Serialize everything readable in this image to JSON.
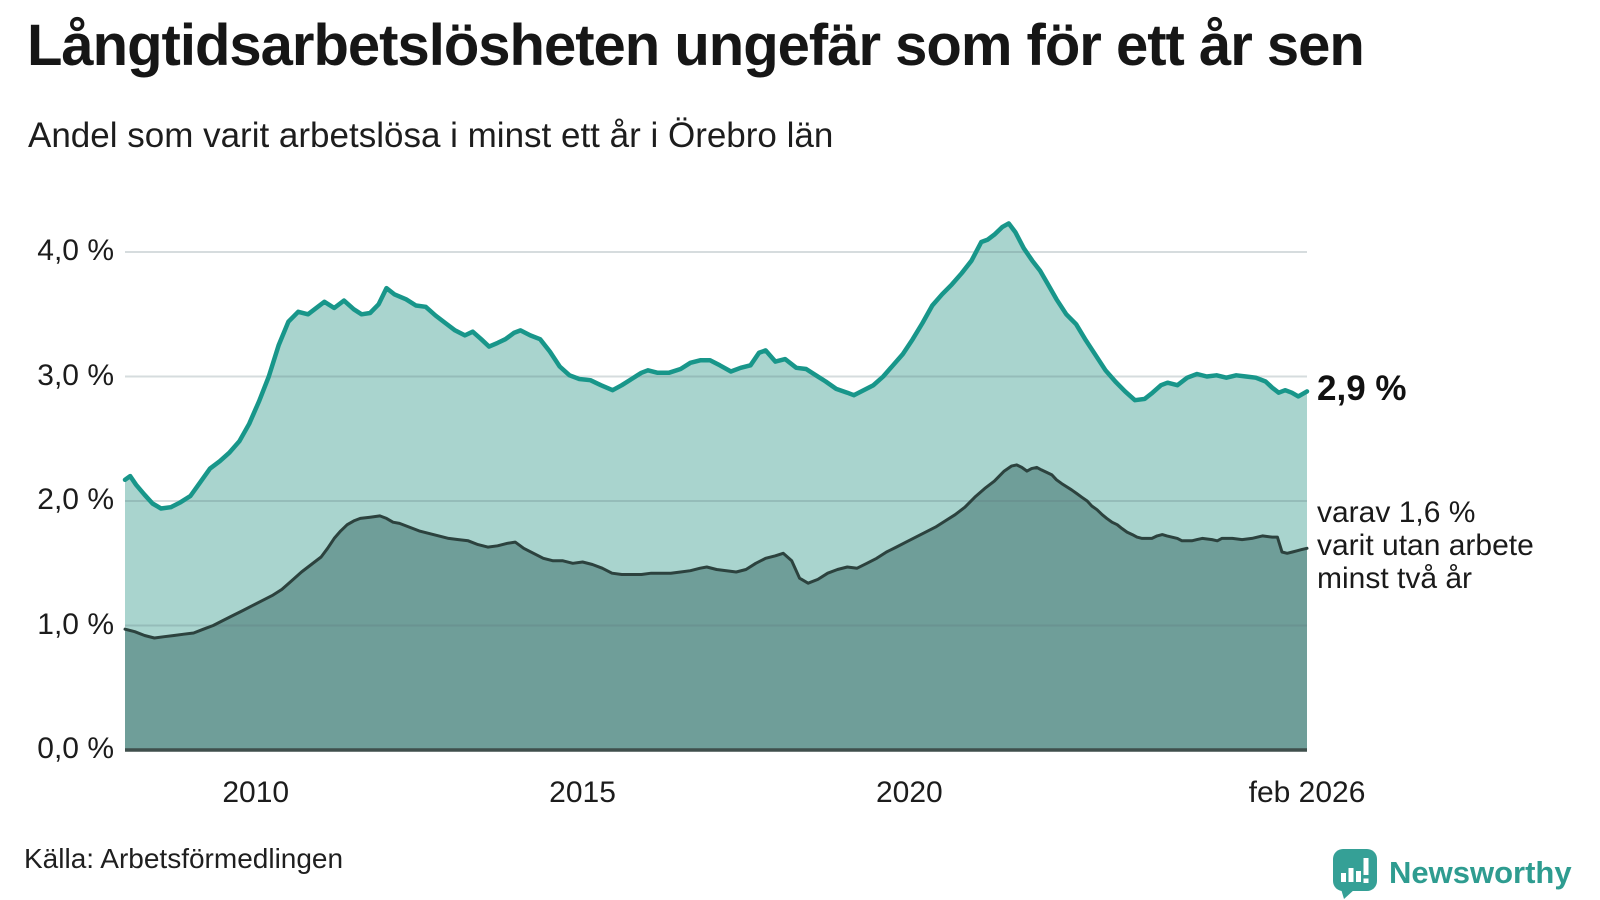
{
  "header": {
    "title": "Långtidsarbetslösheten ungefär som för ett år sen",
    "subtitle": "Andel som varit arbetslösa i minst ett år i Örebro län"
  },
  "footer": {
    "source": "Källa: Arbetsförmedlingen",
    "brand": "Newsworthy"
  },
  "colors": {
    "accent_teal": "#18968a",
    "light_fill": "#a9d4ce",
    "dark_fill": "#6f9e99",
    "dark_line": "#2c423e",
    "axis_line": "#3f4f4c",
    "gridline": "rgba(92,114,124,0.25)",
    "brand_teal": "#2e9c90"
  },
  "chart_data": {
    "type": "area",
    "title": "Långtidsarbetslösheten ungefär som för ett år sen",
    "subtitle": "Andel som varit arbetslösa i minst ett år i Örebro län",
    "grid": true,
    "legend_position": "right-annotations",
    "x_range": [
      2008.0,
      2026.083
    ],
    "y_range": [
      0,
      4.0
    ],
    "y_ticks": [
      {
        "value": 4.0,
        "label": "4,0 %"
      },
      {
        "value": 3.0,
        "label": "3,0 %"
      },
      {
        "value": 2.0,
        "label": "2,0 %"
      },
      {
        "value": 1.0,
        "label": "1,0 %"
      },
      {
        "value": 0.0,
        "label": "0,0 %"
      }
    ],
    "x_ticks": [
      {
        "value": 2010,
        "label": "2010"
      },
      {
        "value": 2015,
        "label": "2015"
      },
      {
        "value": 2020,
        "label": "2020"
      },
      {
        "value": 2026.083,
        "label": "feb 2026"
      }
    ],
    "annotations": {
      "latest_total": "2,9 %",
      "secondary_lines": [
        "varav 1,6 %",
        "varit utan arbete",
        "minst två år"
      ]
    },
    "series": [
      {
        "name": "Andel arbetslösa minst ett år",
        "color": "#18968a",
        "fill": "#a9d4ce",
        "end_label": "2,9 %",
        "points": [
          [
            2008.0,
            2.17
          ],
          [
            2008.08,
            2.2
          ],
          [
            2008.17,
            2.13
          ],
          [
            2008.3,
            2.05
          ],
          [
            2008.42,
            1.98
          ],
          [
            2008.55,
            1.94
          ],
          [
            2008.7,
            1.95
          ],
          [
            2008.85,
            1.99
          ],
          [
            2009.0,
            2.04
          ],
          [
            2009.15,
            2.15
          ],
          [
            2009.3,
            2.26
          ],
          [
            2009.45,
            2.32
          ],
          [
            2009.6,
            2.39
          ],
          [
            2009.75,
            2.48
          ],
          [
            2009.9,
            2.62
          ],
          [
            2010.05,
            2.8
          ],
          [
            2010.2,
            3.0
          ],
          [
            2010.35,
            3.25
          ],
          [
            2010.5,
            3.44
          ],
          [
            2010.65,
            3.52
          ],
          [
            2010.8,
            3.5
          ],
          [
            2010.95,
            3.56
          ],
          [
            2011.05,
            3.6
          ],
          [
            2011.2,
            3.55
          ],
          [
            2011.35,
            3.61
          ],
          [
            2011.5,
            3.54
          ],
          [
            2011.62,
            3.5
          ],
          [
            2011.75,
            3.51
          ],
          [
            2011.88,
            3.58
          ],
          [
            2012.0,
            3.71
          ],
          [
            2012.12,
            3.66
          ],
          [
            2012.3,
            3.62
          ],
          [
            2012.45,
            3.57
          ],
          [
            2012.6,
            3.56
          ],
          [
            2012.75,
            3.49
          ],
          [
            2012.9,
            3.43
          ],
          [
            2013.05,
            3.37
          ],
          [
            2013.2,
            3.33
          ],
          [
            2013.32,
            3.36
          ],
          [
            2013.45,
            3.3
          ],
          [
            2013.57,
            3.24
          ],
          [
            2013.7,
            3.27
          ],
          [
            2013.82,
            3.3
          ],
          [
            2013.95,
            3.35
          ],
          [
            2014.05,
            3.37
          ],
          [
            2014.2,
            3.33
          ],
          [
            2014.35,
            3.3
          ],
          [
            2014.5,
            3.2
          ],
          [
            2014.65,
            3.08
          ],
          [
            2014.8,
            3.01
          ],
          [
            2014.95,
            2.98
          ],
          [
            2015.12,
            2.97
          ],
          [
            2015.28,
            2.93
          ],
          [
            2015.46,
            2.89
          ],
          [
            2015.6,
            2.93
          ],
          [
            2015.75,
            2.98
          ],
          [
            2015.9,
            3.03
          ],
          [
            2016.0,
            3.05
          ],
          [
            2016.15,
            3.03
          ],
          [
            2016.32,
            3.03
          ],
          [
            2016.5,
            3.06
          ],
          [
            2016.65,
            3.11
          ],
          [
            2016.8,
            3.13
          ],
          [
            2016.95,
            3.13
          ],
          [
            2017.1,
            3.09
          ],
          [
            2017.27,
            3.04
          ],
          [
            2017.42,
            3.07
          ],
          [
            2017.57,
            3.09
          ],
          [
            2017.7,
            3.19
          ],
          [
            2017.8,
            3.21
          ],
          [
            2017.95,
            3.12
          ],
          [
            2018.1,
            3.14
          ],
          [
            2018.27,
            3.07
          ],
          [
            2018.42,
            3.06
          ],
          [
            2018.57,
            3.01
          ],
          [
            2018.72,
            2.96
          ],
          [
            2018.88,
            2.9
          ],
          [
            2019.05,
            2.87
          ],
          [
            2019.15,
            2.85
          ],
          [
            2019.3,
            2.89
          ],
          [
            2019.45,
            2.93
          ],
          [
            2019.6,
            3.0
          ],
          [
            2019.75,
            3.09
          ],
          [
            2019.9,
            3.18
          ],
          [
            2020.05,
            3.3
          ],
          [
            2020.2,
            3.43
          ],
          [
            2020.35,
            3.57
          ],
          [
            2020.5,
            3.66
          ],
          [
            2020.65,
            3.74
          ],
          [
            2020.8,
            3.83
          ],
          [
            2020.95,
            3.93
          ],
          [
            2021.1,
            4.08
          ],
          [
            2021.2,
            4.1
          ],
          [
            2021.3,
            4.14
          ],
          [
            2021.42,
            4.2
          ],
          [
            2021.52,
            4.23
          ],
          [
            2021.62,
            4.16
          ],
          [
            2021.75,
            4.03
          ],
          [
            2021.88,
            3.93
          ],
          [
            2022.0,
            3.85
          ],
          [
            2022.12,
            3.74
          ],
          [
            2022.25,
            3.62
          ],
          [
            2022.4,
            3.5
          ],
          [
            2022.55,
            3.42
          ],
          [
            2022.7,
            3.29
          ],
          [
            2022.85,
            3.17
          ],
          [
            2023.0,
            3.05
          ],
          [
            2023.15,
            2.96
          ],
          [
            2023.3,
            2.88
          ],
          [
            2023.45,
            2.81
          ],
          [
            2023.6,
            2.82
          ],
          [
            2023.72,
            2.87
          ],
          [
            2023.85,
            2.93
          ],
          [
            2023.95,
            2.95
          ],
          [
            2024.1,
            2.93
          ],
          [
            2024.25,
            2.99
          ],
          [
            2024.4,
            3.02
          ],
          [
            2024.55,
            3.0
          ],
          [
            2024.7,
            3.01
          ],
          [
            2024.85,
            2.99
          ],
          [
            2025.0,
            3.01
          ],
          [
            2025.15,
            3.0
          ],
          [
            2025.3,
            2.99
          ],
          [
            2025.45,
            2.96
          ],
          [
            2025.55,
            2.91
          ],
          [
            2025.65,
            2.87
          ],
          [
            2025.75,
            2.89
          ],
          [
            2025.85,
            2.87
          ],
          [
            2025.95,
            2.84
          ],
          [
            2026.083,
            2.88
          ]
        ]
      },
      {
        "name": "varav utan arbete minst två år",
        "color": "#2c423e",
        "fill": "#6f9e99",
        "end_label": "1,6 %",
        "points": [
          [
            2008.0,
            0.97
          ],
          [
            2008.15,
            0.95
          ],
          [
            2008.3,
            0.92
          ],
          [
            2008.45,
            0.9
          ],
          [
            2008.6,
            0.91
          ],
          [
            2008.75,
            0.92
          ],
          [
            2008.9,
            0.93
          ],
          [
            2009.05,
            0.94
          ],
          [
            2009.2,
            0.97
          ],
          [
            2009.35,
            1.0
          ],
          [
            2009.5,
            1.04
          ],
          [
            2009.65,
            1.08
          ],
          [
            2009.8,
            1.12
          ],
          [
            2009.95,
            1.16
          ],
          [
            2010.1,
            1.2
          ],
          [
            2010.25,
            1.24
          ],
          [
            2010.4,
            1.29
          ],
          [
            2010.55,
            1.36
          ],
          [
            2010.7,
            1.43
          ],
          [
            2010.85,
            1.49
          ],
          [
            2011.0,
            1.55
          ],
          [
            2011.1,
            1.62
          ],
          [
            2011.2,
            1.7
          ],
          [
            2011.3,
            1.76
          ],
          [
            2011.4,
            1.81
          ],
          [
            2011.5,
            1.84
          ],
          [
            2011.6,
            1.86
          ],
          [
            2011.75,
            1.87
          ],
          [
            2011.9,
            1.88
          ],
          [
            2012.0,
            1.86
          ],
          [
            2012.1,
            1.83
          ],
          [
            2012.2,
            1.82
          ],
          [
            2012.35,
            1.79
          ],
          [
            2012.5,
            1.76
          ],
          [
            2012.65,
            1.74
          ],
          [
            2012.8,
            1.72
          ],
          [
            2012.95,
            1.7
          ],
          [
            2013.1,
            1.69
          ],
          [
            2013.25,
            1.68
          ],
          [
            2013.4,
            1.65
          ],
          [
            2013.55,
            1.63
          ],
          [
            2013.7,
            1.64
          ],
          [
            2013.85,
            1.66
          ],
          [
            2013.97,
            1.67
          ],
          [
            2014.1,
            1.62
          ],
          [
            2014.25,
            1.58
          ],
          [
            2014.4,
            1.54
          ],
          [
            2014.55,
            1.52
          ],
          [
            2014.7,
            1.52
          ],
          [
            2014.85,
            1.5
          ],
          [
            2015.0,
            1.51
          ],
          [
            2015.15,
            1.49
          ],
          [
            2015.3,
            1.46
          ],
          [
            2015.45,
            1.42
          ],
          [
            2015.6,
            1.41
          ],
          [
            2015.75,
            1.41
          ],
          [
            2015.9,
            1.41
          ],
          [
            2016.05,
            1.42
          ],
          [
            2016.2,
            1.42
          ],
          [
            2016.35,
            1.42
          ],
          [
            2016.5,
            1.43
          ],
          [
            2016.65,
            1.44
          ],
          [
            2016.8,
            1.46
          ],
          [
            2016.9,
            1.47
          ],
          [
            2017.05,
            1.45
          ],
          [
            2017.2,
            1.44
          ],
          [
            2017.35,
            1.43
          ],
          [
            2017.5,
            1.45
          ],
          [
            2017.65,
            1.5
          ],
          [
            2017.8,
            1.54
          ],
          [
            2017.95,
            1.56
          ],
          [
            2018.07,
            1.58
          ],
          [
            2018.2,
            1.52
          ],
          [
            2018.32,
            1.38
          ],
          [
            2018.45,
            1.34
          ],
          [
            2018.6,
            1.37
          ],
          [
            2018.75,
            1.42
          ],
          [
            2018.9,
            1.45
          ],
          [
            2019.05,
            1.47
          ],
          [
            2019.2,
            1.46
          ],
          [
            2019.35,
            1.5
          ],
          [
            2019.5,
            1.54
          ],
          [
            2019.65,
            1.59
          ],
          [
            2019.8,
            1.63
          ],
          [
            2019.95,
            1.67
          ],
          [
            2020.1,
            1.71
          ],
          [
            2020.25,
            1.75
          ],
          [
            2020.4,
            1.79
          ],
          [
            2020.55,
            1.84
          ],
          [
            2020.7,
            1.89
          ],
          [
            2020.85,
            1.95
          ],
          [
            2021.0,
            2.03
          ],
          [
            2021.15,
            2.1
          ],
          [
            2021.3,
            2.16
          ],
          [
            2021.45,
            2.24
          ],
          [
            2021.56,
            2.28
          ],
          [
            2021.64,
            2.29
          ],
          [
            2021.72,
            2.27
          ],
          [
            2021.8,
            2.24
          ],
          [
            2021.87,
            2.26
          ],
          [
            2021.95,
            2.27
          ],
          [
            2022.02,
            2.25
          ],
          [
            2022.1,
            2.23
          ],
          [
            2022.18,
            2.21
          ],
          [
            2022.25,
            2.17
          ],
          [
            2022.33,
            2.14
          ],
          [
            2022.48,
            2.09
          ],
          [
            2022.56,
            2.06
          ],
          [
            2022.64,
            2.03
          ],
          [
            2022.72,
            2.0
          ],
          [
            2022.79,
            1.96
          ],
          [
            2022.87,
            1.93
          ],
          [
            2022.95,
            1.89
          ],
          [
            2023.02,
            1.86
          ],
          [
            2023.1,
            1.83
          ],
          [
            2023.18,
            1.81
          ],
          [
            2023.25,
            1.78
          ],
          [
            2023.33,
            1.75
          ],
          [
            2023.41,
            1.73
          ],
          [
            2023.48,
            1.71
          ],
          [
            2023.56,
            1.7
          ],
          [
            2023.71,
            1.7
          ],
          [
            2023.79,
            1.72
          ],
          [
            2023.87,
            1.73
          ],
          [
            2023.94,
            1.72
          ],
          [
            2024.1,
            1.7
          ],
          [
            2024.17,
            1.68
          ],
          [
            2024.32,
            1.68
          ],
          [
            2024.4,
            1.69
          ],
          [
            2024.48,
            1.7
          ],
          [
            2024.63,
            1.69
          ],
          [
            2024.71,
            1.68
          ],
          [
            2024.78,
            1.7
          ],
          [
            2024.94,
            1.7
          ],
          [
            2025.09,
            1.69
          ],
          [
            2025.24,
            1.7
          ],
          [
            2025.4,
            1.72
          ],
          [
            2025.55,
            1.71
          ],
          [
            2025.63,
            1.71
          ],
          [
            2025.7,
            1.59
          ],
          [
            2025.78,
            1.58
          ],
          [
            2025.86,
            1.59
          ],
          [
            2025.93,
            1.6
          ],
          [
            2026.0,
            1.61
          ],
          [
            2026.083,
            1.62
          ]
        ]
      }
    ]
  }
}
